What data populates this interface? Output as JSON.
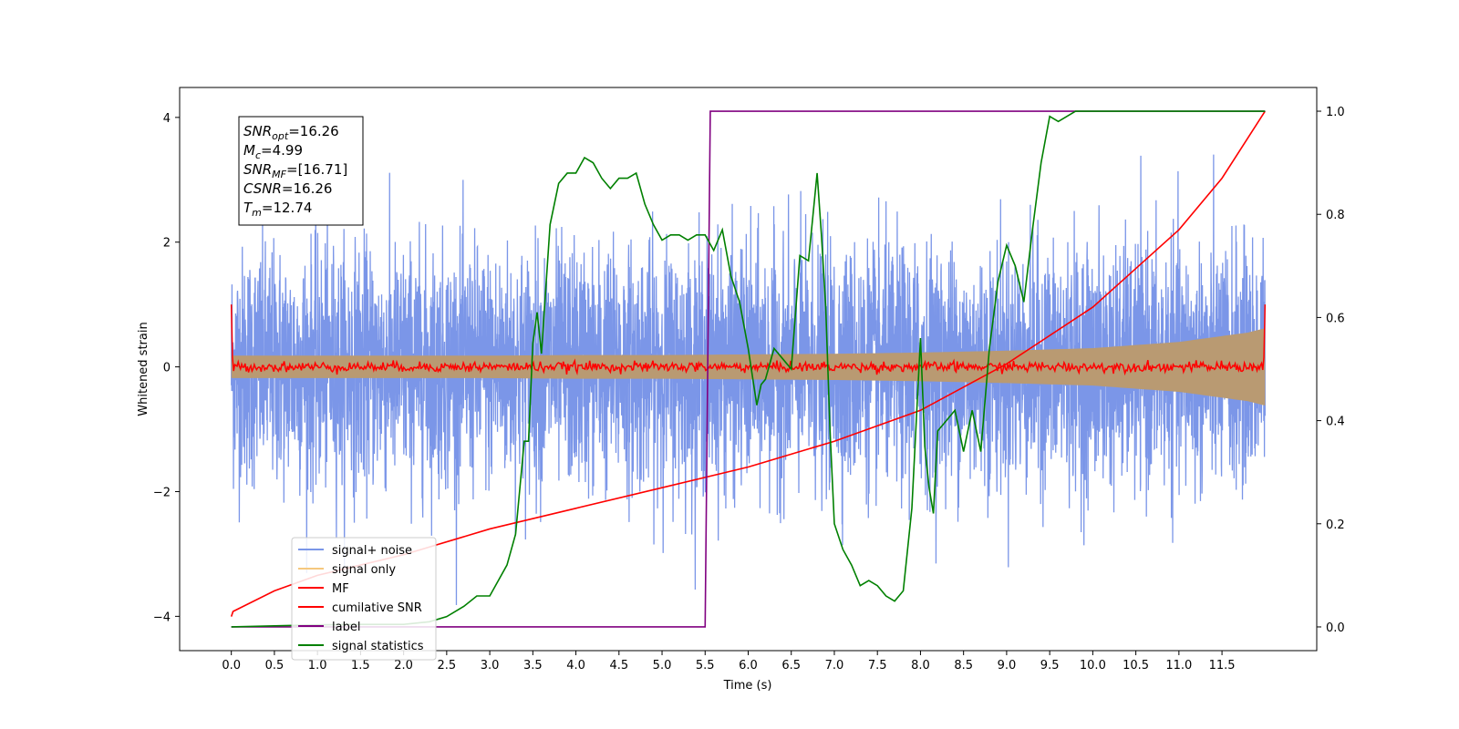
{
  "chart_data": {
    "type": "line",
    "xlabel": "Time (s)",
    "ylabel": "Whitened strain",
    "xlim": [
      -0.6,
      12.6
    ],
    "ylim": [
      -4.55,
      4.48
    ],
    "y2lim": [
      -0.046,
      1.046
    ],
    "x_ticks": [
      0.0,
      0.5,
      1.0,
      1.5,
      2.0,
      2.5,
      3.0,
      3.5,
      4.0,
      4.5,
      5.0,
      5.5,
      6.0,
      6.5,
      7.0,
      7.5,
      8.0,
      8.5,
      9.0,
      9.5,
      10.0,
      10.5,
      11.0,
      11.5
    ],
    "x_tick_labels": [
      "0.0",
      "0.5",
      "1.0",
      "1.5",
      "2.0",
      "2.5",
      "3.0",
      "3.5",
      "4.0",
      "4.5",
      "5.0",
      "5.5",
      "6.0",
      "6.5",
      "7.0",
      "7.5",
      "8.0",
      "8.5",
      "9.0",
      "9.5",
      "10.0",
      "10.5",
      "11.0",
      "11.5"
    ],
    "y_ticks": [
      4,
      2,
      0,
      -2,
      -4
    ],
    "y_tick_labels": [
      "4",
      "2",
      "0",
      "−2",
      "−4"
    ],
    "y2_ticks": [
      1.0,
      0.8,
      0.6,
      0.4,
      0.2,
      0.0
    ],
    "y2_tick_labels": [
      "1.0",
      "0.8",
      "0.6",
      "0.4",
      "0.2",
      "0.0"
    ],
    "grid": false,
    "legend_position": "lower-left",
    "series": [
      {
        "name": "signal+ noise",
        "color": "#7b96e8",
        "axis": "left",
        "kind": "noise",
        "std": 0.95,
        "x_range": [
          0,
          12
        ]
      },
      {
        "name": "signal only",
        "color": "#f5c87e",
        "axis": "left",
        "kind": "envelope",
        "x": [
          0,
          1,
          2,
          3,
          4,
          5,
          6,
          7,
          8,
          9,
          10,
          11,
          11.8,
          12
        ],
        "amplitude": [
          0.18,
          0.18,
          0.18,
          0.18,
          0.19,
          0.19,
          0.2,
          0.21,
          0.23,
          0.26,
          0.3,
          0.4,
          0.55,
          0.62
        ]
      },
      {
        "name": "MF",
        "color": "#ff0000",
        "axis": "left",
        "kind": "mf_noise",
        "std": 0.04,
        "x_range": [
          0,
          12
        ],
        "edge_value": 1.0
      },
      {
        "name": "cumilative SNR",
        "color": "#ff0000",
        "axis": "right",
        "x": [
          0,
          0.02,
          0.5,
          1,
          2,
          3,
          4,
          5,
          6,
          7,
          8,
          9,
          10,
          11,
          11.5,
          12
        ],
        "y": [
          0.02,
          0.03,
          0.07,
          0.1,
          0.14,
          0.19,
          0.23,
          0.27,
          0.31,
          0.36,
          0.42,
          0.51,
          0.62,
          0.77,
          0.87,
          1.0
        ]
      },
      {
        "name": "label",
        "color": "#800080",
        "axis": "right",
        "x": [
          0,
          5.5,
          5.56,
          12
        ],
        "y": [
          0,
          0,
          1,
          1
        ]
      },
      {
        "name": "signal statistics",
        "color": "#008000",
        "axis": "right",
        "x": [
          0,
          0.5,
          1,
          1.5,
          2,
          2.3,
          2.5,
          2.7,
          2.85,
          3.0,
          3.2,
          3.3,
          3.4,
          3.45,
          3.5,
          3.55,
          3.6,
          3.7,
          3.8,
          3.9,
          4.0,
          4.1,
          4.2,
          4.3,
          4.4,
          4.5,
          4.6,
          4.7,
          4.8,
          4.9,
          5.0,
          5.1,
          5.2,
          5.3,
          5.4,
          5.5,
          5.6,
          5.7,
          5.8,
          5.9,
          6.0,
          6.1,
          6.15,
          6.2,
          6.3,
          6.4,
          6.5,
          6.6,
          6.7,
          6.8,
          6.85,
          6.9,
          6.95,
          7.0,
          7.1,
          7.2,
          7.3,
          7.4,
          7.5,
          7.6,
          7.7,
          7.8,
          7.9,
          8.0,
          8.05,
          8.1,
          8.15,
          8.2,
          8.3,
          8.4,
          8.5,
          8.6,
          8.7,
          8.8,
          8.9,
          9.0,
          9.1,
          9.2,
          9.3,
          9.4,
          9.5,
          9.6,
          9.8,
          10.0,
          10.5,
          11.0,
          11.5,
          12
        ],
        "y": [
          0.0,
          0.002,
          0.004,
          0.005,
          0.005,
          0.01,
          0.02,
          0.04,
          0.06,
          0.06,
          0.12,
          0.18,
          0.36,
          0.36,
          0.55,
          0.61,
          0.53,
          0.78,
          0.86,
          0.88,
          0.88,
          0.91,
          0.9,
          0.87,
          0.85,
          0.87,
          0.87,
          0.88,
          0.82,
          0.78,
          0.75,
          0.76,
          0.76,
          0.75,
          0.76,
          0.76,
          0.73,
          0.77,
          0.68,
          0.63,
          0.54,
          0.43,
          0.47,
          0.48,
          0.54,
          0.52,
          0.5,
          0.72,
          0.71,
          0.88,
          0.76,
          0.62,
          0.38,
          0.2,
          0.15,
          0.12,
          0.08,
          0.09,
          0.08,
          0.06,
          0.05,
          0.07,
          0.23,
          0.56,
          0.35,
          0.27,
          0.22,
          0.38,
          0.4,
          0.42,
          0.34,
          0.42,
          0.34,
          0.54,
          0.67,
          0.74,
          0.7,
          0.63,
          0.77,
          0.9,
          0.99,
          0.98,
          1.0,
          1.0,
          1.0,
          1.0,
          1.0,
          1.0
        ]
      }
    ],
    "annotations": [
      {
        "base": "SNR",
        "sub": "opt",
        "value": "=16.26"
      },
      {
        "base": "M",
        "sub": "c",
        "value": "=4.99"
      },
      {
        "base": "SNR",
        "sub": "MF",
        "value": "=[16.71]"
      },
      {
        "base": "CSNR",
        "sub": "",
        "value": "=16.26"
      },
      {
        "base": "T",
        "sub": "m",
        "value": "=12.74"
      }
    ]
  }
}
